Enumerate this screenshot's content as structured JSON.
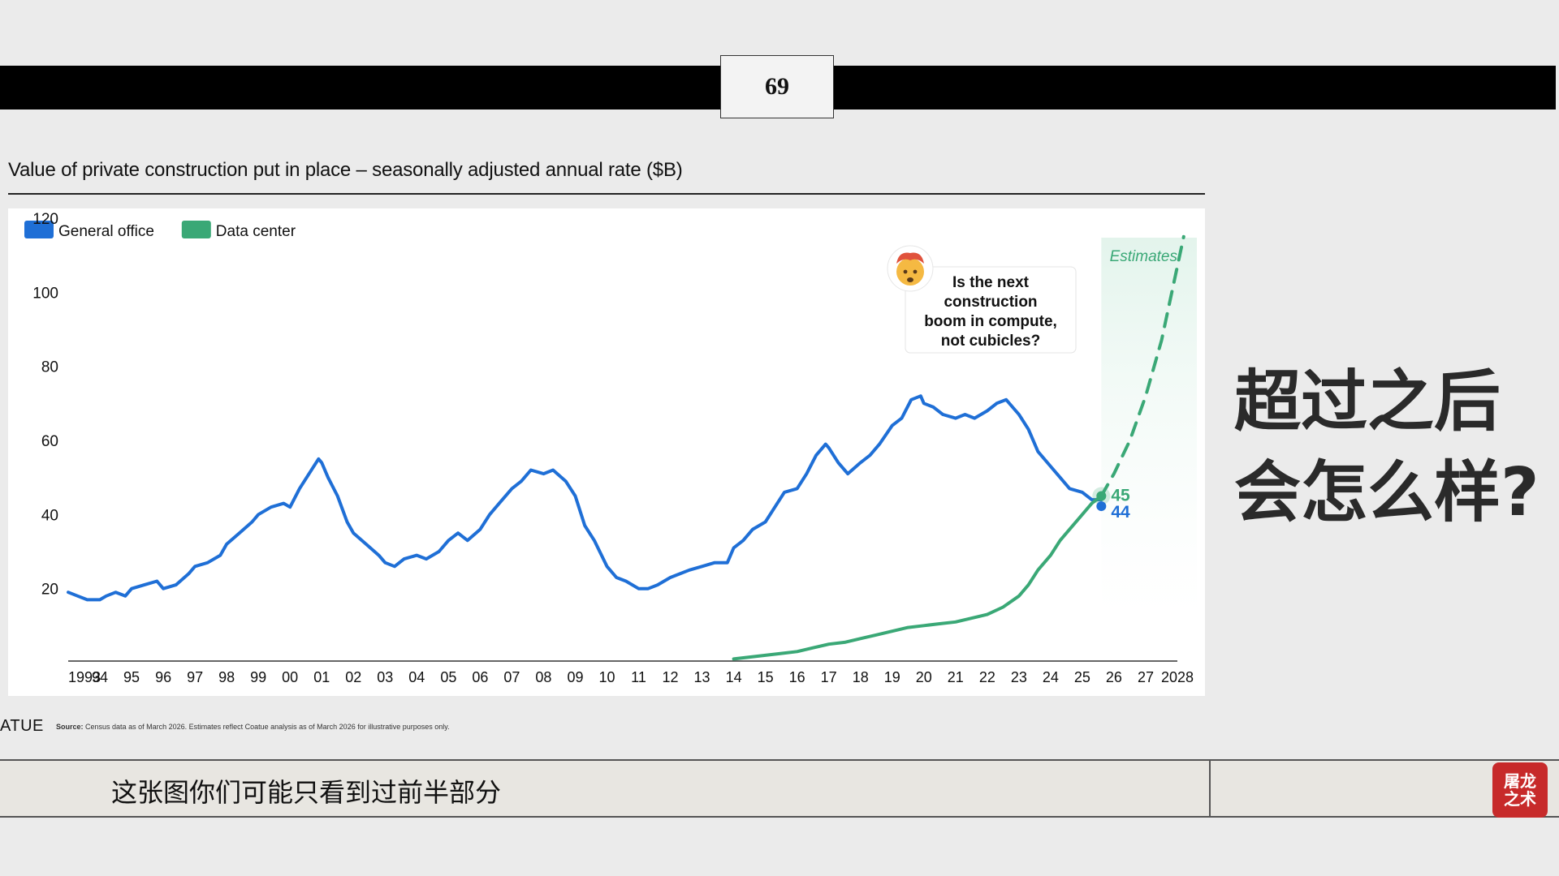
{
  "page_number": "69",
  "chart_title": "Value of private construction put in place – seasonally adjusted annual rate ($B)",
  "overlay_heading": [
    "超过之后",
    "会怎么样?"
  ],
  "brand": "ATUE",
  "source": {
    "label": "Source:",
    "text": "Census data as of March 2026. Estimates reflect Coatue analysis as of March 2026 for illustrative purposes only."
  },
  "caption": "这张图你们可能只看到过前半部分",
  "logo": {
    "text": "屠龙之术"
  },
  "annotation": {
    "icon": "mind-blown-emoji-icon",
    "text": [
      "Is the next",
      "construction",
      "boom in compute,",
      "not cubicles?"
    ]
  },
  "colors": {
    "office": "#1f6fd6",
    "datacenter": "#3aa876",
    "estimates_fill": "#e3f4ec",
    "estimates_text": "#3aa876"
  },
  "chart_data": {
    "type": "line",
    "title": "Value of private construction put in place – seasonally adjusted annual rate ($B)",
    "xlabel": "",
    "ylabel": "",
    "xlim": [
      1993,
      2028
    ],
    "ylim": [
      0,
      120
    ],
    "y_ticks": [
      20,
      40,
      60,
      80,
      100,
      120
    ],
    "x_ticks": [
      {
        "x": 1993,
        "label": "1993"
      },
      {
        "x": 1994,
        "label": "94"
      },
      {
        "x": 1995,
        "label": "95"
      },
      {
        "x": 1996,
        "label": "96"
      },
      {
        "x": 1997,
        "label": "97"
      },
      {
        "x": 1998,
        "label": "98"
      },
      {
        "x": 1999,
        "label": "99"
      },
      {
        "x": 2000,
        "label": "00"
      },
      {
        "x": 2001,
        "label": "01"
      },
      {
        "x": 2002,
        "label": "02"
      },
      {
        "x": 2003,
        "label": "03"
      },
      {
        "x": 2004,
        "label": "04"
      },
      {
        "x": 2005,
        "label": "05"
      },
      {
        "x": 2006,
        "label": "06"
      },
      {
        "x": 2007,
        "label": "07"
      },
      {
        "x": 2008,
        "label": "08"
      },
      {
        "x": 2009,
        "label": "09"
      },
      {
        "x": 2010,
        "label": "10"
      },
      {
        "x": 2011,
        "label": "11"
      },
      {
        "x": 2012,
        "label": "12"
      },
      {
        "x": 2013,
        "label": "13"
      },
      {
        "x": 2014,
        "label": "14"
      },
      {
        "x": 2015,
        "label": "15"
      },
      {
        "x": 2016,
        "label": "16"
      },
      {
        "x": 2017,
        "label": "17"
      },
      {
        "x": 2018,
        "label": "18"
      },
      {
        "x": 2019,
        "label": "19"
      },
      {
        "x": 2020,
        "label": "20"
      },
      {
        "x": 2021,
        "label": "21"
      },
      {
        "x": 2022,
        "label": "22"
      },
      {
        "x": 2023,
        "label": "23"
      },
      {
        "x": 2024,
        "label": "24"
      },
      {
        "x": 2025,
        "label": "25"
      },
      {
        "x": 2026,
        "label": "26"
      },
      {
        "x": 2027,
        "label": "27"
      },
      {
        "x": 2028,
        "label": "2028"
      }
    ],
    "grid": false,
    "legend": {
      "position": "top-left",
      "entries": [
        {
          "name": "General office",
          "color": "#1f6fd6"
        },
        {
          "name": "Data center",
          "color": "#3aa876"
        }
      ]
    },
    "estimates_region": {
      "from": 2025.6,
      "to": 2028.5,
      "label": "Estimates"
    },
    "series": [
      {
        "name": "General office",
        "color": "#1f6fd6",
        "style": "solid",
        "end_label": "44",
        "points": [
          [
            1993.0,
            19
          ],
          [
            1993.3,
            18
          ],
          [
            1993.6,
            17
          ],
          [
            1994.0,
            17
          ],
          [
            1994.2,
            18
          ],
          [
            1994.5,
            19
          ],
          [
            1994.8,
            18
          ],
          [
            1995.0,
            20
          ],
          [
            1995.4,
            21
          ],
          [
            1995.8,
            22
          ],
          [
            1996.0,
            20
          ],
          [
            1996.4,
            21
          ],
          [
            1996.8,
            24
          ],
          [
            1997.0,
            26
          ],
          [
            1997.4,
            27
          ],
          [
            1997.8,
            29
          ],
          [
            1998.0,
            32
          ],
          [
            1998.4,
            35
          ],
          [
            1998.8,
            38
          ],
          [
            1999.0,
            40
          ],
          [
            1999.4,
            42
          ],
          [
            1999.8,
            43
          ],
          [
            2000.0,
            42
          ],
          [
            2000.3,
            47
          ],
          [
            2000.6,
            51
          ],
          [
            2000.9,
            55
          ],
          [
            2001.0,
            54
          ],
          [
            2001.2,
            50
          ],
          [
            2001.5,
            45
          ],
          [
            2001.8,
            38
          ],
          [
            2002.0,
            35
          ],
          [
            2002.4,
            32
          ],
          [
            2002.8,
            29
          ],
          [
            2003.0,
            27
          ],
          [
            2003.3,
            26
          ],
          [
            2003.6,
            28
          ],
          [
            2004.0,
            29
          ],
          [
            2004.3,
            28
          ],
          [
            2004.7,
            30
          ],
          [
            2005.0,
            33
          ],
          [
            2005.3,
            35
          ],
          [
            2005.6,
            33
          ],
          [
            2006.0,
            36
          ],
          [
            2006.3,
            40
          ],
          [
            2006.6,
            43
          ],
          [
            2007.0,
            47
          ],
          [
            2007.3,
            49
          ],
          [
            2007.6,
            52
          ],
          [
            2008.0,
            51
          ],
          [
            2008.3,
            52
          ],
          [
            2008.7,
            49
          ],
          [
            2009.0,
            45
          ],
          [
            2009.3,
            37
          ],
          [
            2009.6,
            33
          ],
          [
            2010.0,
            26
          ],
          [
            2010.3,
            23
          ],
          [
            2010.6,
            22
          ],
          [
            2011.0,
            20
          ],
          [
            2011.3,
            20
          ],
          [
            2011.6,
            21
          ],
          [
            2012.0,
            23
          ],
          [
            2012.3,
            24
          ],
          [
            2012.6,
            25
          ],
          [
            2013.0,
            26
          ],
          [
            2013.4,
            27
          ],
          [
            2013.8,
            27
          ],
          [
            2014.0,
            31
          ],
          [
            2014.3,
            33
          ],
          [
            2014.6,
            36
          ],
          [
            2015.0,
            38
          ],
          [
            2015.3,
            42
          ],
          [
            2015.6,
            46
          ],
          [
            2016.0,
            47
          ],
          [
            2016.3,
            51
          ],
          [
            2016.6,
            56
          ],
          [
            2016.9,
            59
          ],
          [
            2017.0,
            58
          ],
          [
            2017.3,
            54
          ],
          [
            2017.6,
            51
          ],
          [
            2018.0,
            54
          ],
          [
            2018.3,
            56
          ],
          [
            2018.6,
            59
          ],
          [
            2019.0,
            64
          ],
          [
            2019.3,
            66
          ],
          [
            2019.6,
            71
          ],
          [
            2019.9,
            72
          ],
          [
            2020.0,
            70
          ],
          [
            2020.3,
            69
          ],
          [
            2020.6,
            67
          ],
          [
            2021.0,
            66
          ],
          [
            2021.3,
            67
          ],
          [
            2021.6,
            66
          ],
          [
            2022.0,
            68
          ],
          [
            2022.3,
            70
          ],
          [
            2022.6,
            71
          ],
          [
            2022.9,
            68
          ],
          [
            2023.0,
            67
          ],
          [
            2023.3,
            63
          ],
          [
            2023.6,
            57
          ],
          [
            2024.0,
            53
          ],
          [
            2024.3,
            50
          ],
          [
            2024.6,
            47
          ],
          [
            2025.0,
            46
          ],
          [
            2025.3,
            44
          ],
          [
            2025.6,
            44
          ]
        ]
      },
      {
        "name": "Data center",
        "color": "#3aa876",
        "style": "solid",
        "end_label": "45",
        "points": [
          [
            2014.0,
            1
          ],
          [
            2014.5,
            1.5
          ],
          [
            2015.0,
            2
          ],
          [
            2015.5,
            2.5
          ],
          [
            2016.0,
            3
          ],
          [
            2016.5,
            4
          ],
          [
            2017.0,
            5
          ],
          [
            2017.5,
            5.5
          ],
          [
            2018.0,
            6.5
          ],
          [
            2018.5,
            7.5
          ],
          [
            2019.0,
            8.5
          ],
          [
            2019.5,
            9.5
          ],
          [
            2020.0,
            10
          ],
          [
            2020.5,
            10.5
          ],
          [
            2021.0,
            11
          ],
          [
            2021.5,
            12
          ],
          [
            2022.0,
            13
          ],
          [
            2022.5,
            15
          ],
          [
            2023.0,
            18
          ],
          [
            2023.3,
            21
          ],
          [
            2023.6,
            25
          ],
          [
            2024.0,
            29
          ],
          [
            2024.3,
            33
          ],
          [
            2024.6,
            36
          ],
          [
            2025.0,
            40
          ],
          [
            2025.3,
            43
          ],
          [
            2025.6,
            45
          ]
        ]
      },
      {
        "name": "Data center estimate",
        "color": "#3aa876",
        "style": "dashed",
        "points": [
          [
            2025.6,
            45
          ],
          [
            2026.0,
            51
          ],
          [
            2026.5,
            60
          ],
          [
            2027.0,
            72
          ],
          [
            2027.5,
            87
          ],
          [
            2027.9,
            103
          ],
          [
            2028.2,
            115
          ]
        ]
      }
    ]
  }
}
